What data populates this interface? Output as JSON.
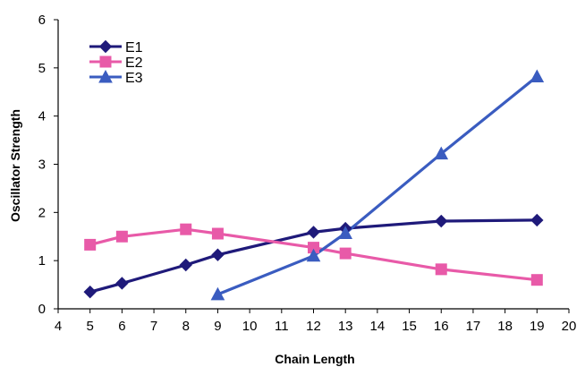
{
  "chart_data": {
    "type": "line",
    "title": "",
    "xlabel": "Chain Length",
    "ylabel": "Oscillator Strength",
    "xlim": [
      4,
      20
    ],
    "ylim": [
      0,
      6
    ],
    "xticks": [
      4,
      5,
      6,
      7,
      8,
      9,
      10,
      11,
      12,
      13,
      14,
      15,
      16,
      17,
      18,
      19,
      20
    ],
    "yticks": [
      0,
      1,
      2,
      3,
      4,
      5,
      6
    ],
    "grid": false,
    "legend_position": "top-left",
    "series": [
      {
        "name": "E1",
        "color": "#1f1a7a",
        "marker": "diamond",
        "x": [
          5,
          6,
          8,
          9,
          12,
          13,
          16,
          19
        ],
        "y": [
          0.35,
          0.53,
          0.91,
          1.12,
          1.59,
          1.67,
          1.82,
          1.84
        ]
      },
      {
        "name": "E2",
        "color": "#e85aa8",
        "marker": "square",
        "x": [
          5,
          6,
          8,
          9,
          12,
          13,
          16,
          19
        ],
        "y": [
          1.33,
          1.5,
          1.65,
          1.56,
          1.27,
          1.15,
          0.82,
          0.6
        ]
      },
      {
        "name": "E3",
        "color": "#3a5cc0",
        "marker": "triangle",
        "x": [
          9,
          12,
          13,
          16,
          19
        ],
        "y": [
          0.3,
          1.1,
          1.57,
          3.22,
          4.82
        ]
      }
    ]
  }
}
